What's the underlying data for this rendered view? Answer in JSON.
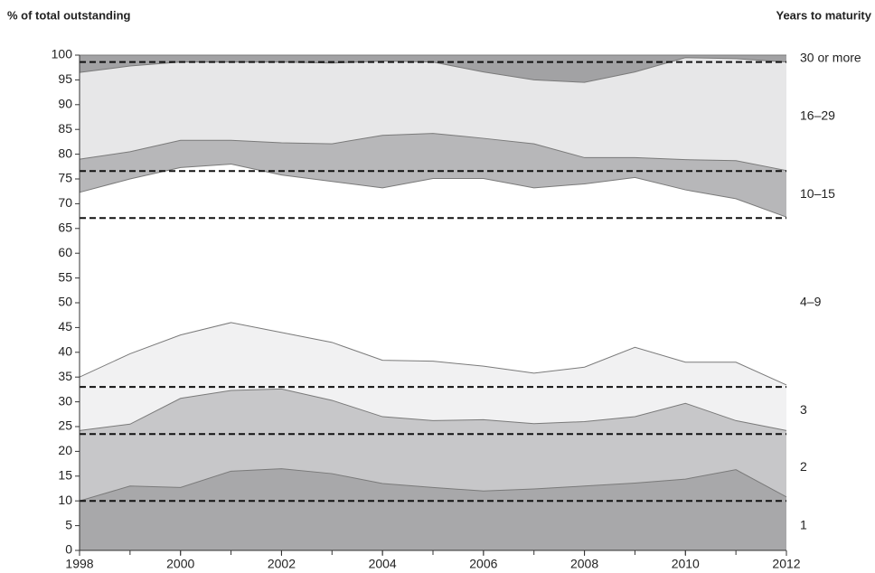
{
  "chart_data": {
    "type": "stacked_area",
    "y_axis_label": "% of  total outstanding",
    "legend_title": "Years to maturity",
    "x": [
      1998,
      1999,
      2000,
      2001,
      2002,
      2003,
      2004,
      2005,
      2006,
      2007,
      2008,
      2009,
      2010,
      2011,
      2012
    ],
    "xlim": [
      1998,
      2012
    ],
    "xticks": [
      1998,
      2000,
      2002,
      2004,
      2006,
      2008,
      2010,
      2012
    ],
    "ylim": [
      0,
      100
    ],
    "yticks": [
      0,
      5,
      10,
      15,
      20,
      25,
      30,
      35,
      40,
      45,
      50,
      55,
      60,
      65,
      70,
      75,
      80,
      85,
      90,
      95,
      100
    ],
    "series": [
      {
        "name": "1",
        "color": "#a8a8aa",
        "values": [
          10,
          13,
          12.7,
          16,
          16.5,
          15.5,
          13.5,
          12.7,
          12,
          12.4,
          13,
          13.6,
          14.4,
          16.3,
          10.8
        ]
      },
      {
        "name": "2",
        "color": "#c7c7c9",
        "values": [
          14.2,
          12.5,
          18,
          16.3,
          16.1,
          14.8,
          13.5,
          13.5,
          14.4,
          13.2,
          13,
          13.4,
          15.3,
          9.9,
          13.4
        ]
      },
      {
        "name": "3",
        "color": "#f1f1f2",
        "values": [
          10.8,
          14.2,
          12.8,
          13.7,
          11.4,
          11.7,
          11.4,
          12,
          10.8,
          10.2,
          11,
          14,
          8.3,
          11.8,
          9.2
        ]
      },
      {
        "name": "4–9",
        "color": "#ffffff",
        "values": [
          37.3,
          35.3,
          33.8,
          32,
          31.8,
          32.5,
          34.8,
          36.9,
          37.9,
          37.4,
          37,
          34.3,
          34.8,
          33,
          33.9
        ]
      },
      {
        "name": "10–15",
        "color": "#b7b7b9",
        "values": [
          6.7,
          5.5,
          5.5,
          4.8,
          6.5,
          7.6,
          10.6,
          9.1,
          8.1,
          8.9,
          5.3,
          4,
          6.1,
          7.7,
          9.4
        ]
      },
      {
        "name": "16–29",
        "color": "#e7e7e8",
        "values": [
          17.5,
          17.3,
          15.8,
          15.8,
          16.3,
          16.3,
          15,
          14.4,
          13.4,
          12.9,
          15.2,
          17.3,
          20.6,
          20.6,
          21.9
        ]
      },
      {
        "name": "30 or more",
        "color": "#a2a2a4",
        "values": [
          3.5,
          2.2,
          1.4,
          1.4,
          1.4,
          1.6,
          1.2,
          1.4,
          3.4,
          5,
          5.5,
          3.4,
          0.5,
          0.7,
          1.4
        ]
      }
    ],
    "reference_lines": [
      10,
      23.5,
      33,
      67.1,
      76.6,
      98.6
    ]
  }
}
